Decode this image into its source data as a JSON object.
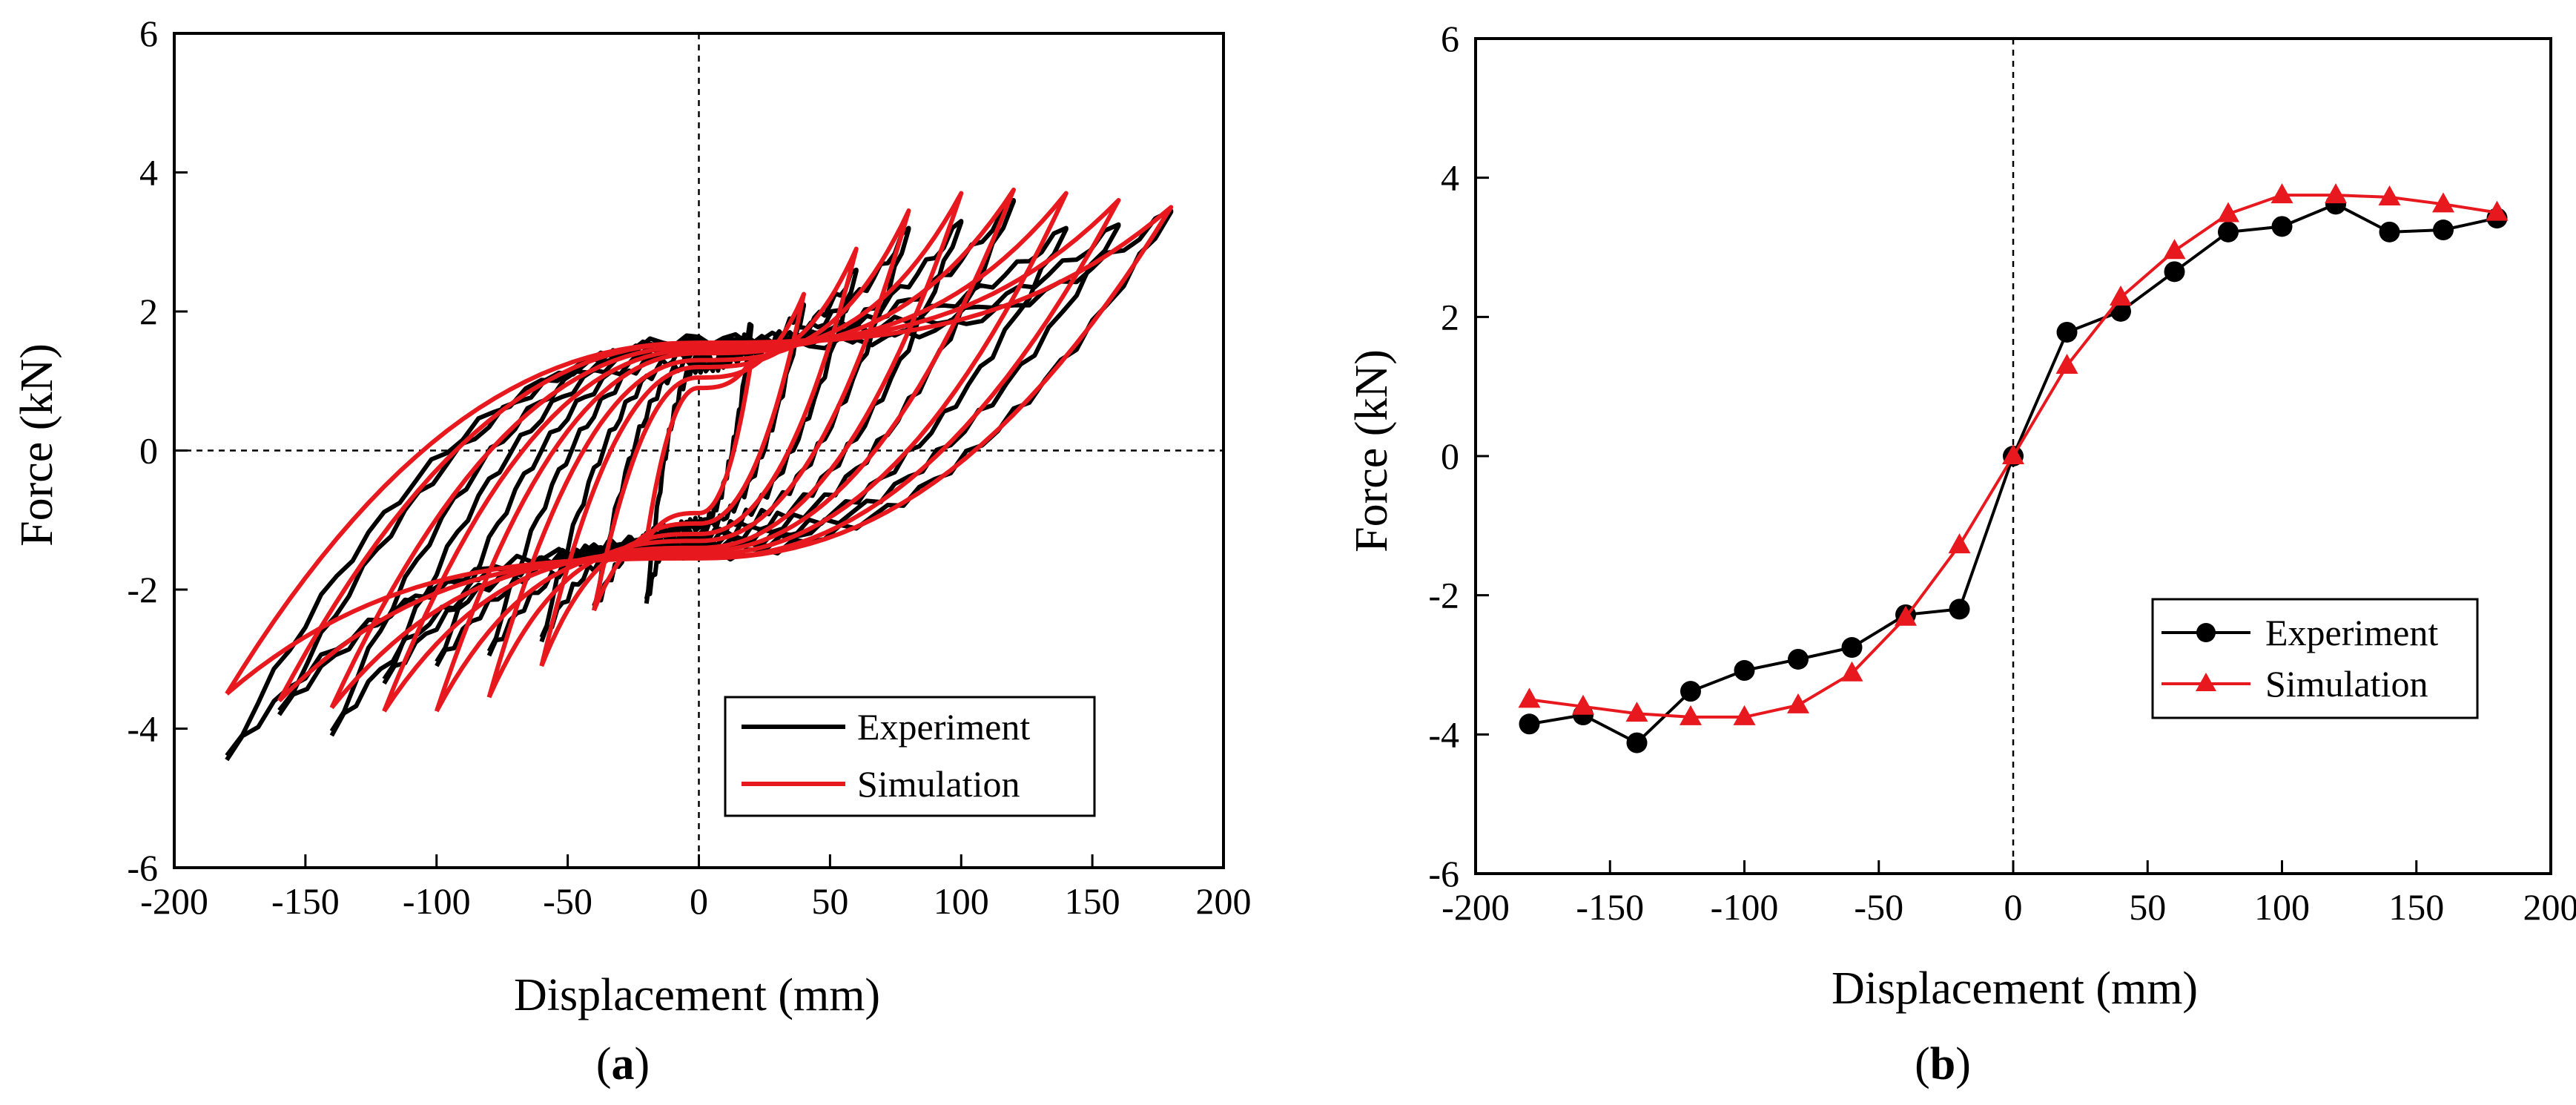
{
  "chart_data": [
    {
      "type": "line",
      "panel_label": "a",
      "subtype": "hysteresis",
      "title": "",
      "xlabel": "Displacement (mm)",
      "ylabel": "Force (kN)",
      "xlim": [
        -200,
        200
      ],
      "ylim": [
        -6,
        6
      ],
      "xticks": [
        -200,
        -150,
        -100,
        -50,
        0,
        50,
        100,
        150,
        200
      ],
      "yticks": [
        -6,
        -4,
        -2,
        0,
        2,
        4,
        6
      ],
      "grid": false,
      "reference_lines": "dashed lines at x=0 and y=0",
      "legend_position": "bottom-right",
      "series": [
        {
          "name": "Experiment",
          "color": "#000000",
          "amplitudes": [
            20,
            40,
            60,
            80,
            100,
            120,
            140,
            160,
            180
          ],
          "peak_force_pos": [
            1.8,
            2.1,
            2.6,
            3.2,
            3.3,
            3.6,
            3.2,
            3.25,
            3.45
          ],
          "peak_force_neg": [
            -2.2,
            -2.3,
            -2.75,
            -2.95,
            -3.1,
            -3.35,
            -4.1,
            -3.8,
            -4.45
          ],
          "force_at_zero_on_return_pos": [
            1.2,
            1.3,
            1.4,
            1.5,
            1.5,
            1.55,
            1.6,
            1.55,
            1.5
          ],
          "force_at_zero_on_return_neg": [
            -1.05,
            -1.1,
            -1.2,
            -1.25,
            -1.3,
            -1.35,
            -1.4,
            -1.4,
            -1.5
          ]
        },
        {
          "name": "Simulation",
          "color": "#e8191e",
          "amplitudes": [
            20,
            40,
            60,
            80,
            100,
            120,
            140,
            160,
            180
          ],
          "peak_force_pos": [
            1.3,
            2.25,
            2.9,
            3.45,
            3.7,
            3.75,
            3.7,
            3.6,
            3.5
          ],
          "peak_force_neg": [
            -1.3,
            -2.3,
            -3.1,
            -3.55,
            -3.75,
            -3.75,
            -3.7,
            -3.6,
            -3.5
          ],
          "force_at_zero_on_return_pos": [
            0.9,
            1.05,
            1.2,
            1.3,
            1.4,
            1.45,
            1.5,
            1.55,
            1.55
          ],
          "force_at_zero_on_return_neg": [
            -0.9,
            -1.05,
            -1.2,
            -1.3,
            -1.4,
            -1.45,
            -1.5,
            -1.55,
            -1.55
          ]
        }
      ]
    },
    {
      "type": "line",
      "panel_label": "b",
      "subtype": "skeleton-curve",
      "title": "",
      "xlabel": "Displacement (mm)",
      "ylabel": "Force (kN)",
      "xlim": [
        -200,
        200
      ],
      "ylim": [
        -6,
        6
      ],
      "xticks": [
        -200,
        -150,
        -100,
        -50,
        0,
        50,
        100,
        150,
        200
      ],
      "yticks": [
        -6,
        -4,
        -2,
        0,
        2,
        4,
        6
      ],
      "grid": false,
      "reference_lines": "dashed line at x=0",
      "legend_position": "right-middle",
      "series": [
        {
          "name": "Experiment",
          "color": "#000000",
          "marker": "circle",
          "x": [
            -180,
            -160,
            -140,
            -120,
            -100,
            -80,
            -60,
            -40,
            -20,
            0,
            20,
            40,
            60,
            80,
            100,
            120,
            140,
            160,
            180
          ],
          "y": [
            -3.85,
            -3.72,
            -4.12,
            -3.38,
            -3.08,
            -2.92,
            -2.75,
            -2.28,
            -2.2,
            0,
            1.78,
            2.08,
            2.65,
            3.22,
            3.3,
            3.62,
            3.22,
            3.25,
            3.42
          ]
        },
        {
          "name": "Simulation",
          "color": "#e8191e",
          "marker": "triangle",
          "x": [
            -180,
            -160,
            -140,
            -120,
            -100,
            -80,
            -60,
            -40,
            -20,
            0,
            20,
            40,
            60,
            80,
            100,
            120,
            140,
            160,
            180
          ],
          "y": [
            -3.5,
            -3.6,
            -3.7,
            -3.75,
            -3.75,
            -3.58,
            -3.12,
            -2.32,
            -1.28,
            0,
            1.3,
            2.28,
            2.95,
            3.48,
            3.75,
            3.75,
            3.72,
            3.62,
            3.5
          ]
        }
      ]
    }
  ]
}
